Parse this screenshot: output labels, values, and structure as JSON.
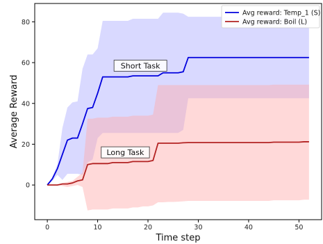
{
  "chart_data": {
    "type": "line",
    "title": "",
    "xlabel": "Time step",
    "ylabel": "Average Reward",
    "xlim": [
      -2.5,
      54.5
    ],
    "ylim": [
      -17,
      89
    ],
    "xticks": [
      0,
      10,
      20,
      30,
      40,
      50
    ],
    "yticks": [
      0,
      20,
      40,
      60,
      80
    ],
    "grid": false,
    "legend_position": "top-right",
    "annotations": [
      {
        "text": "Short Task",
        "x": 18.5,
        "y": 58.5
      },
      {
        "text": "Long Task",
        "x": 15.5,
        "y": 16
      }
    ],
    "series": [
      {
        "name": "Avg reward: Temp_1 (S)",
        "color": "#0000dd",
        "fill_color": "#aaaaff",
        "x": [
          0,
          1,
          2,
          3,
          4,
          5,
          6,
          7,
          8,
          9,
          10,
          11,
          12,
          13,
          14,
          15,
          16,
          17,
          18,
          19,
          20,
          21,
          22,
          23,
          24,
          25,
          26,
          27,
          28,
          29,
          30,
          31,
          32,
          33,
          34,
          35,
          36,
          37,
          38,
          39,
          40,
          41,
          42,
          43,
          44,
          45,
          46,
          47,
          48,
          49,
          50,
          51,
          52
        ],
        "y": [
          0,
          3,
          8,
          15,
          22,
          23,
          23,
          30,
          37.5,
          38,
          45,
          53,
          53,
          53,
          53,
          53,
          53,
          53.5,
          53.5,
          53.5,
          53.5,
          53.5,
          53.5,
          55,
          55,
          55,
          55,
          55.5,
          62.5,
          62.5,
          62.5,
          62.5,
          62.5,
          62.5,
          62.5,
          62.5,
          62.5,
          62.5,
          62.5,
          62.5,
          62.5,
          62.5,
          62.5,
          62.5,
          62.5,
          62.5,
          62.5,
          62.5,
          62.5,
          62.5,
          62.5,
          62.5,
          62.5
        ],
        "upper": [
          0,
          4,
          10,
          28,
          38,
          40.5,
          41,
          57,
          64,
          64,
          67,
          80.5,
          80.5,
          80.5,
          80.5,
          80.5,
          80.5,
          81.5,
          81.5,
          81.5,
          81.5,
          81.5,
          81.5,
          84.5,
          84.5,
          84.5,
          84.5,
          84,
          82.5,
          82.5,
          82.5,
          82.5,
          82.5,
          82.5,
          82.5,
          82.5,
          82.5,
          82.5,
          82.5,
          82.5,
          82.5,
          82.5,
          82.5,
          82.5,
          82.5,
          82.5,
          82.5,
          82.5,
          82.5,
          82.5,
          82.5,
          82.5,
          82.5
        ],
        "lower": [
          0,
          2,
          5,
          2.5,
          5.5,
          5.5,
          5.5,
          5,
          11,
          12.5,
          23,
          25.5,
          25.5,
          25.5,
          25.5,
          25.5,
          25.5,
          25.5,
          25.5,
          25.5,
          25.5,
          25.5,
          25.5,
          25.5,
          25.5,
          25.5,
          25.5,
          27,
          42.5,
          42.5,
          42.5,
          42.5,
          42.5,
          42.5,
          42.5,
          42.5,
          42.5,
          42.5,
          42.5,
          42.5,
          42.5,
          42.5,
          42.5,
          42.5,
          42.5,
          42.5,
          42.5,
          42.5,
          42.5,
          42.5,
          42.5,
          42.5,
          42.5
        ]
      },
      {
        "name": "Avg reward: Boil (L)",
        "color": "#b22222",
        "fill_color": "#ffaaaa",
        "x": [
          0,
          1,
          2,
          3,
          4,
          5,
          6,
          7,
          8,
          9,
          10,
          11,
          12,
          13,
          14,
          15,
          16,
          17,
          18,
          19,
          20,
          21,
          22,
          23,
          24,
          25,
          26,
          27,
          28,
          29,
          30,
          31,
          32,
          33,
          34,
          35,
          36,
          37,
          38,
          39,
          40,
          41,
          42,
          43,
          44,
          45,
          46,
          47,
          48,
          49,
          50,
          51,
          52
        ],
        "y": [
          0,
          0,
          0,
          0.5,
          0.5,
          1,
          2,
          2.5,
          10,
          10.5,
          10.5,
          10.5,
          10.5,
          11,
          11,
          11,
          11,
          11.5,
          11.5,
          11.5,
          11.5,
          12,
          20.5,
          20.5,
          20.5,
          20.5,
          20.5,
          20.7,
          20.8,
          20.8,
          20.8,
          20.8,
          20.8,
          20.8,
          20.8,
          20.8,
          20.8,
          20.8,
          20.8,
          20.8,
          20.8,
          20.8,
          20.8,
          20.8,
          20.8,
          21,
          21,
          21,
          21,
          21,
          21,
          21.2,
          21.2
        ],
        "upper": [
          0,
          0,
          0,
          1,
          1.5,
          2,
          4,
          6,
          32.5,
          32.5,
          33,
          33,
          33,
          33.5,
          33.5,
          33.5,
          33.5,
          34,
          34,
          34,
          34,
          34.5,
          49,
          49,
          49,
          49,
          49,
          49,
          49,
          49,
          49,
          49,
          49,
          49,
          49,
          49,
          49,
          49,
          49,
          49,
          49,
          49,
          49,
          49,
          49,
          49.2,
          49.2,
          49.2,
          49.2,
          49.2,
          49.2,
          49.2,
          49.2
        ],
        "lower": [
          0,
          0,
          0,
          -0.5,
          -1,
          -0.5,
          0,
          -1,
          -12.5,
          -12,
          -12,
          -12,
          -12,
          -11.5,
          -11.5,
          -11.5,
          -11.5,
          -11,
          -11,
          -10.5,
          -10.5,
          -10,
          -8.5,
          -8.5,
          -8.3,
          -8.3,
          -8.2,
          -8,
          -7.8,
          -7.8,
          -7.8,
          -7.8,
          -7.8,
          -7.8,
          -7.8,
          -7.8,
          -7.8,
          -7.8,
          -7.8,
          -7.8,
          -7.8,
          -7.8,
          -7.8,
          -7.8,
          -7.8,
          -7.5,
          -7.5,
          -7.5,
          -7.5,
          -7.5,
          -7.5,
          -7.2,
          -7.2
        ]
      }
    ]
  }
}
